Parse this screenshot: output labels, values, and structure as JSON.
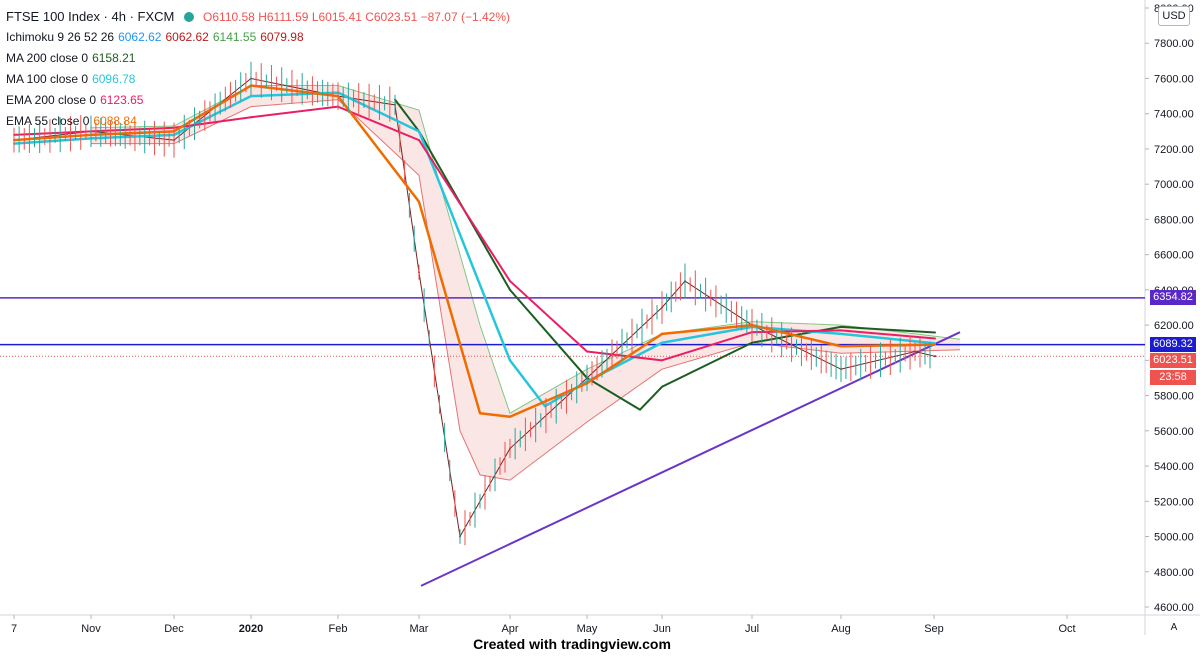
{
  "legend": {
    "title": "FTSE 100 Index · 4h · FXCM",
    "ohlc": {
      "o": "O6110.58",
      "h": "H6111.59",
      "l": "L6015.41",
      "c": "C6023.51",
      "chg": "−87.07 (−1.42%)"
    },
    "indicators": [
      {
        "label": "Ichimoku 9 26 52 26",
        "values": [
          {
            "v": "6062.62",
            "color": "#2196f3"
          },
          {
            "v": "6062.62",
            "color": "#b71c1c"
          },
          {
            "v": "6141.55",
            "color": "#43a047"
          },
          {
            "v": "6079.98",
            "color": "#b71c1c"
          }
        ]
      },
      {
        "label": "MA 200 close 0",
        "values": [
          {
            "v": "6158.21",
            "color": "#1b5e20"
          }
        ]
      },
      {
        "label": "MA 100 close 0",
        "values": [
          {
            "v": "6096.78",
            "color": "#26c6da"
          }
        ]
      },
      {
        "label": "EMA 200 close 0",
        "values": [
          {
            "v": "6123.65",
            "color": "#e91e63"
          }
        ]
      },
      {
        "label": "EMA 55 close 0",
        "values": [
          {
            "v": "6088.84",
            "color": "#ef6c00"
          }
        ]
      }
    ]
  },
  "price_axis": {
    "currency": "USD",
    "auto_label": "A"
  },
  "tags": {
    "upper_level": "6354.82",
    "lower_level": "6089.32",
    "last_price": "6023.51",
    "countdown": "23:58"
  },
  "footer": "Created with tradingview.com",
  "colors": {
    "level_line": "#5a28c8",
    "blue_level": "#1c1ccf",
    "last_price": "#ef5350",
    "ma200": "#1b5e20",
    "ma100": "#26c6da",
    "ema200": "#e91e63",
    "ema55": "#ef6c00",
    "conversion": "#2196f3",
    "base": "#b71c1c",
    "span_a": "#81c784",
    "span_b": "#e57373",
    "trendline": "#6a35c9"
  },
  "chart_data": {
    "type": "line",
    "title": "FTSE 100 Index · 4h · FXCM",
    "x_ticks": [
      "7",
      "Nov",
      "Dec",
      "2020",
      "Feb",
      "Mar",
      "Apr",
      "May",
      "Jun",
      "Jul",
      "Aug",
      "Sep",
      "Oct"
    ],
    "y_ticks": [
      "4600.00",
      "4800.00",
      "5000.00",
      "5200.00",
      "5400.00",
      "5600.00",
      "5800.00",
      "6000.00",
      "6200.00",
      "6400.00",
      "6600.00",
      "6800.00",
      "7000.00",
      "7200.00",
      "7400.00",
      "7600.00",
      "7800.00",
      "8000.00"
    ],
    "ylim": [
      4600,
      8000
    ],
    "horizontal_levels": [
      6354.82,
      6089.32
    ],
    "last_price": 6023.51,
    "trendline": [
      [
        "Mar 1",
        4720
      ],
      [
        "Sep 8",
        6160
      ]
    ],
    "series": [
      {
        "name": "Price",
        "points": [
          [
            "7",
            7250
          ],
          [
            "Nov",
            7300
          ],
          [
            "Dec",
            7250
          ],
          [
            "2020",
            7600
          ],
          [
            "Feb",
            7500
          ],
          [
            "Feb 20",
            7450
          ],
          [
            "Mar",
            6500
          ],
          [
            "Mar 16",
            5000
          ],
          [
            "Apr",
            5500
          ],
          [
            "May",
            5900
          ],
          [
            "Jun",
            6300
          ],
          [
            "Jun 8",
            6450
          ],
          [
            "Jul",
            6200
          ],
          [
            "Aug",
            5950
          ],
          [
            "Aug 25",
            6050
          ],
          [
            "Aug 28",
            6023
          ]
        ]
      },
      {
        "name": "MA 200",
        "points": [
          [
            "Feb 20",
            7480
          ],
          [
            "Mar",
            7300
          ],
          [
            "Apr",
            6400
          ],
          [
            "May",
            5900
          ],
          [
            "May 20",
            5720
          ],
          [
            "Jun",
            5850
          ],
          [
            "Jul",
            6100
          ],
          [
            "Aug",
            6190
          ],
          [
            "Aug 28",
            6158
          ]
        ]
      },
      {
        "name": "MA 100",
        "points": [
          [
            "7",
            7230
          ],
          [
            "Nov",
            7260
          ],
          [
            "Dec",
            7280
          ],
          [
            "2020",
            7500
          ],
          [
            "Feb",
            7520
          ],
          [
            "Mar",
            7300
          ],
          [
            "Apr",
            6000
          ],
          [
            "Apr 15",
            5740
          ],
          [
            "May",
            5880
          ],
          [
            "Jun",
            6100
          ],
          [
            "Jul",
            6190
          ],
          [
            "Aug",
            6150
          ],
          [
            "Aug 28",
            6097
          ]
        ]
      },
      {
        "name": "EMA 200",
        "points": [
          [
            "7",
            7280
          ],
          [
            "Nov",
            7300
          ],
          [
            "Dec",
            7320
          ],
          [
            "2020",
            7380
          ],
          [
            "Feb",
            7440
          ],
          [
            "Mar",
            7250
          ],
          [
            "Apr",
            6450
          ],
          [
            "May",
            6050
          ],
          [
            "Jun",
            6000
          ],
          [
            "Jul",
            6160
          ],
          [
            "Aug",
            6170
          ],
          [
            "Aug 28",
            6124
          ]
        ]
      },
      {
        "name": "EMA 55",
        "points": [
          [
            "7",
            7250
          ],
          [
            "Nov",
            7280
          ],
          [
            "Dec",
            7300
          ],
          [
            "2020",
            7560
          ],
          [
            "Feb",
            7500
          ],
          [
            "Mar",
            6900
          ],
          [
            "Mar 25",
            5700
          ],
          [
            "Apr",
            5680
          ],
          [
            "May",
            5870
          ],
          [
            "Jun",
            6150
          ],
          [
            "Jul",
            6200
          ],
          [
            "Aug",
            6080
          ],
          [
            "Aug 28",
            6089
          ]
        ]
      }
    ]
  }
}
